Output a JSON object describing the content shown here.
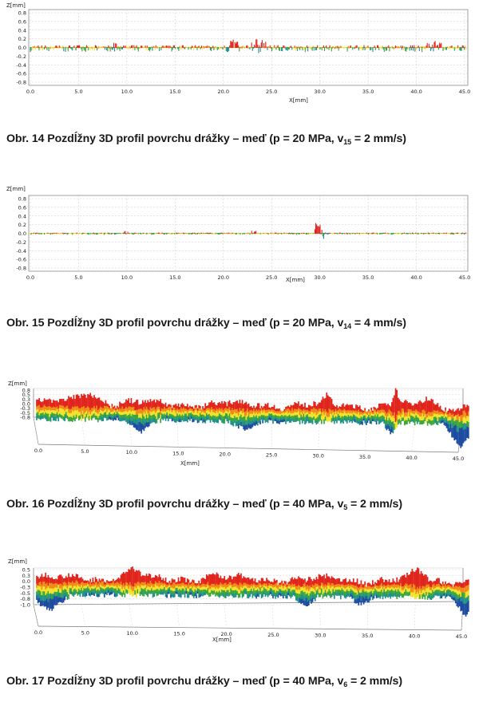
{
  "figures": [
    {
      "id": "fig14",
      "caption_main": "Obr. 14 Pozdĺžny 3D profil povrchu drážky – meď (p = 20 MPa, v",
      "caption_sub": "15",
      "caption_end": " = 2 mm/s)",
      "z_label": "Z[mm]",
      "x_label": "X[mm]",
      "y_ticks": [
        "0.8",
        "0.6",
        "0.4",
        "0.2",
        "0.0",
        "-0.2",
        "-0.4",
        "-0.6",
        "-0.8"
      ],
      "x_ticks": [
        "0.0",
        "5.0",
        "10.0",
        "15.0",
        "20.0",
        "25.0",
        "30.0",
        "35.0",
        "40.0",
        "45.0"
      ]
    },
    {
      "id": "fig15",
      "caption_main": "Obr. 15 Pozdĺžny 3D profil povrchu drážky – meď (p = 20 MPa, v",
      "caption_sub": "14",
      "caption_end": " = 4 mm/s)",
      "z_label": "Z[mm]",
      "x_label": "X[mm]",
      "y_ticks": [
        "0.8",
        "0.6",
        "0.4",
        "0.2",
        "0.0",
        "-0.2",
        "-0.4",
        "-0.6",
        "-0.8"
      ],
      "x_ticks": [
        "0.0",
        "5.0",
        "10.0",
        "15.0",
        "20.0",
        "25.0",
        "30.0",
        "35.0",
        "40.0",
        "45.0"
      ]
    },
    {
      "id": "fig16",
      "caption_main": "Obr. 16 Pozdĺžny 3D profil povrchu drážky – meď (p = 40 MPa, v",
      "caption_sub": "5",
      "caption_end": " = 2 mm/s)",
      "z_label": "Z[mm]",
      "x_label": "X[mm]",
      "y_ticks": [
        "0.8",
        "0.5",
        "0.3",
        "0.0",
        "-0.3",
        "-0.5",
        "-0.8"
      ],
      "x_ticks": [
        "0.0",
        "5.0",
        "10.0",
        "15.0",
        "20.0",
        "25.0",
        "30.0",
        "35.0",
        "40.0",
        "45.0"
      ]
    },
    {
      "id": "fig17",
      "caption_main": "Obr. 17 Pozdĺžny 3D profil povrchu drážky – meď (p = 40 MPa, v",
      "caption_sub": "6",
      "caption_end": " = 2 mm/s)",
      "z_label": "Z[mm]",
      "x_label": "X[mm]",
      "y_ticks": [
        "0.5",
        "0.3",
        "0.0",
        "-0.3",
        "-0.5",
        "-0.8",
        "-1.0"
      ],
      "x_ticks": [
        "0.0",
        "5.0",
        "10.0",
        "15.0",
        "20.0",
        "25.0",
        "30.0",
        "35.0",
        "40.0",
        "45.0"
      ]
    }
  ],
  "colors": {
    "red": "#e0231a",
    "orange": "#f08a16",
    "yellow": "#f2e22a",
    "green": "#3aa63a",
    "teal": "#1f8f8a",
    "blue": "#1b4aa0",
    "grid": "#c9c9c9",
    "frame": "#7a7a7a"
  }
}
